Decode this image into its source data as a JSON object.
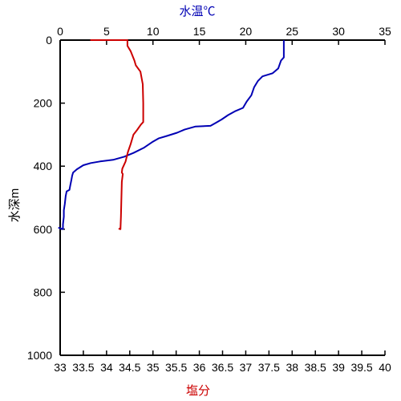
{
  "chart_data": {
    "type": "line",
    "colors": {
      "temperature": "#0000b4",
      "salinity": "#cc0000",
      "axes": "#000000"
    },
    "axes": {
      "temperature_axis": {
        "position": "top",
        "label": "水温℃",
        "range": [
          0,
          35
        ],
        "ticks": [
          0,
          5,
          10,
          15,
          20,
          25,
          30,
          35
        ],
        "tick_labels": [
          "0",
          "5",
          "10",
          "15",
          "20",
          "25",
          "30",
          "35"
        ]
      },
      "salinity_axis": {
        "position": "bottom",
        "label": "塩分",
        "range": [
          33,
          40
        ],
        "ticks": [
          33,
          33.5,
          34,
          34.5,
          35,
          35.5,
          36,
          36.5,
          37,
          37.5,
          38,
          38.5,
          39,
          39.5,
          40
        ],
        "tick_labels": [
          "33",
          "33.5",
          "34",
          "34.5",
          "35",
          "35.5",
          "36",
          "36.5",
          "37",
          "37.5",
          "38",
          "38.5",
          "39",
          "39.5",
          "40"
        ]
      },
      "depth_axis": {
        "position": "left",
        "label": "水深m",
        "range": [
          0,
          1000
        ],
        "inverted": true,
        "ticks": [
          0,
          200,
          400,
          600,
          800,
          1000
        ],
        "tick_labels": [
          "0",
          "200",
          "400",
          "600",
          "800",
          "1000"
        ]
      }
    },
    "grid": false,
    "series": [
      {
        "x_axis": "temperature_axis",
        "points": [
          [
            24.1,
            0
          ],
          [
            24.1,
            15
          ],
          [
            24.1,
            55
          ],
          [
            23.8,
            65
          ],
          [
            23.5,
            90
          ],
          [
            22.9,
            105
          ],
          [
            21.8,
            115
          ],
          [
            21.3,
            130
          ],
          [
            20.9,
            150
          ],
          [
            20.6,
            175
          ],
          [
            20.1,
            195
          ],
          [
            19.7,
            215
          ],
          [
            18.9,
            225
          ],
          [
            18.1,
            238
          ],
          [
            17.4,
            252
          ],
          [
            16.8,
            262
          ],
          [
            16.2,
            272
          ],
          [
            14.6,
            274
          ],
          [
            13.4,
            284
          ],
          [
            12.6,
            294
          ],
          [
            11.5,
            304
          ],
          [
            10.6,
            312
          ],
          [
            9.9,
            324
          ],
          [
            9.0,
            342
          ],
          [
            7.9,
            358
          ],
          [
            6.9,
            370
          ],
          [
            5.7,
            380
          ],
          [
            4.3,
            385
          ],
          [
            3.3,
            390
          ],
          [
            2.5,
            397
          ],
          [
            1.8,
            410
          ],
          [
            1.4,
            420
          ],
          [
            1.3,
            430
          ],
          [
            1.2,
            445
          ],
          [
            1.1,
            460
          ],
          [
            1.0,
            475
          ],
          [
            0.7,
            480
          ],
          [
            0.6,
            495
          ],
          [
            0.5,
            520
          ],
          [
            0.4,
            540
          ],
          [
            0.4,
            560
          ],
          [
            0.3,
            585
          ],
          [
            0.3,
            600
          ],
          [
            -0.2,
            595
          ]
        ]
      },
      {
        "x_axis": "salinity_axis",
        "points": [
          [
            33.65,
            0
          ],
          [
            34.45,
            0
          ],
          [
            34.45,
            18
          ],
          [
            34.52,
            35
          ],
          [
            34.6,
            65
          ],
          [
            34.63,
            80
          ],
          [
            34.73,
            100
          ],
          [
            34.78,
            140
          ],
          [
            34.79,
            200
          ],
          [
            34.79,
            260
          ],
          [
            34.74,
            268
          ],
          [
            34.66,
            285
          ],
          [
            34.58,
            300
          ],
          [
            34.52,
            330
          ],
          [
            34.46,
            355
          ],
          [
            34.41,
            385
          ],
          [
            34.34,
            408
          ],
          [
            34.33,
            420
          ],
          [
            34.35,
            425
          ],
          [
            34.33,
            450
          ],
          [
            34.32,
            500
          ],
          [
            34.31,
            560
          ],
          [
            34.3,
            600
          ],
          [
            34.26,
            598
          ]
        ]
      }
    ]
  }
}
